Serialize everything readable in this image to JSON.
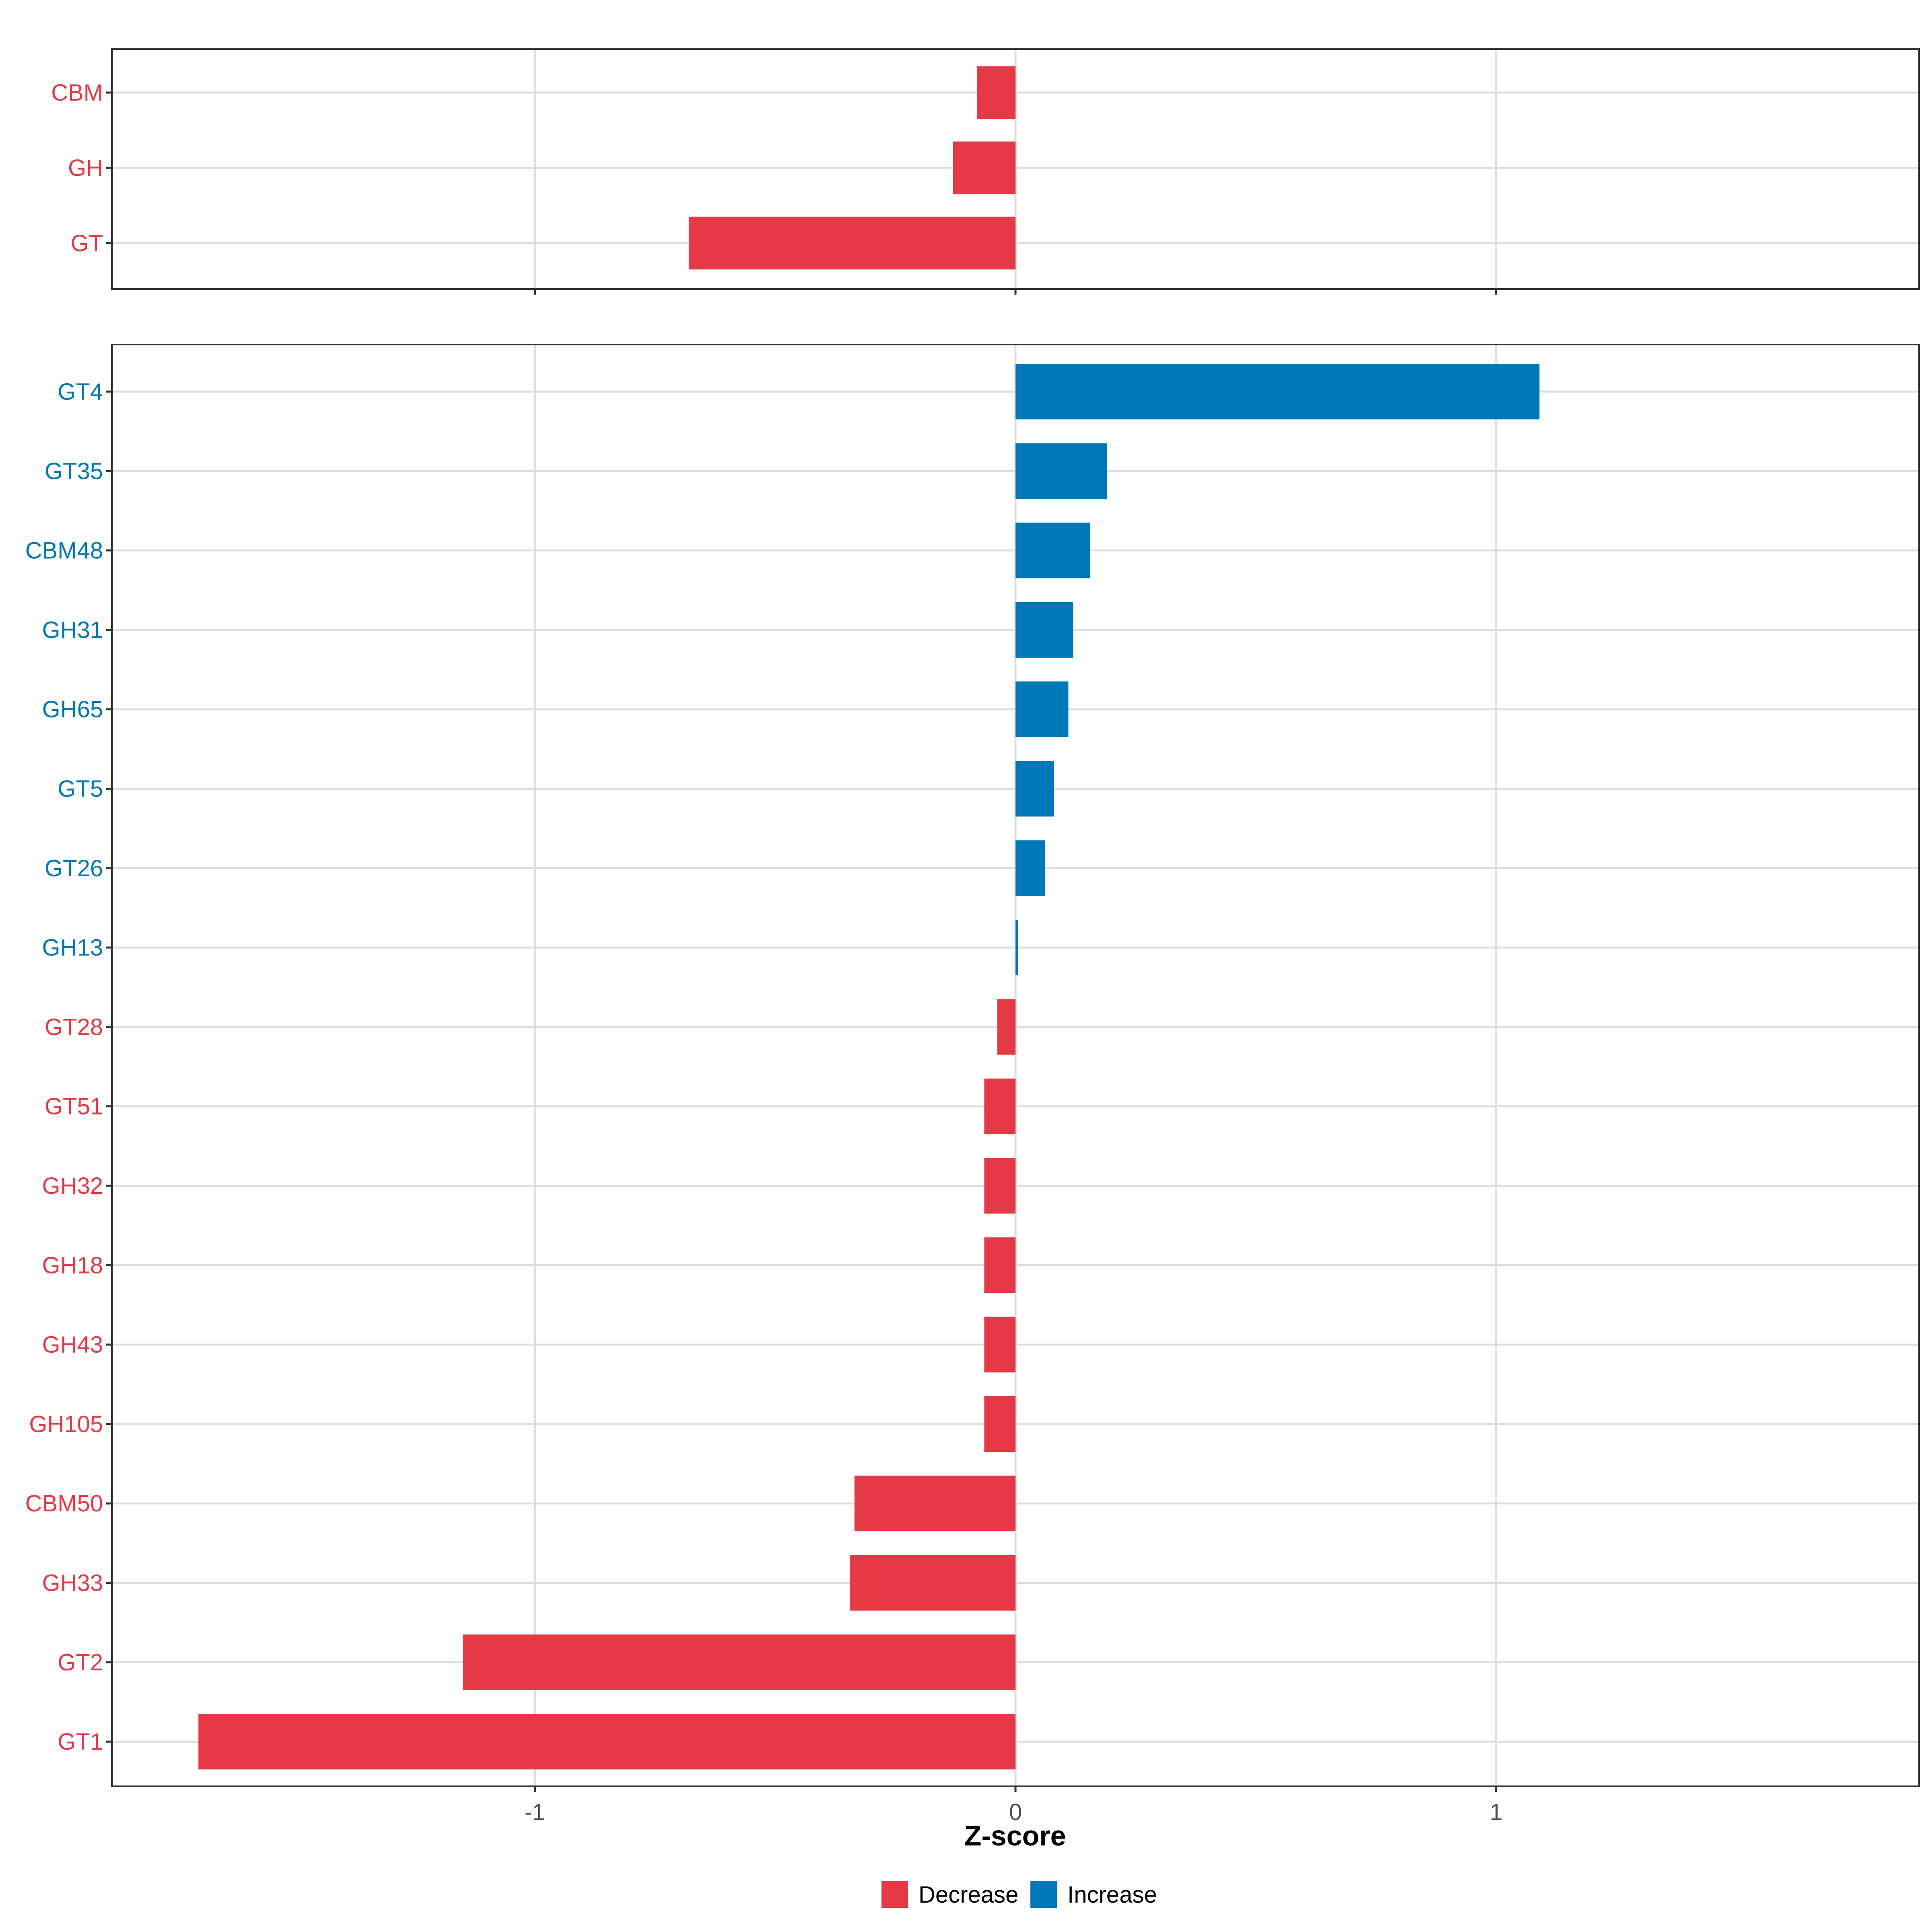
{
  "chart_data": {
    "type": "bar",
    "orientation": "horizontal",
    "xlabel": "Z-score",
    "xlim": [
      -1.88,
      1.88
    ],
    "xticks": [
      -1,
      0,
      1
    ],
    "xtick_labels": [
      "-1",
      "0",
      "1"
    ],
    "grid": true,
    "colors": {
      "Decrease": "#e63946",
      "Increase": "#0077b6"
    },
    "legend": {
      "position": "bottom",
      "entries": [
        {
          "label": "Decrease",
          "color": "#e63946"
        },
        {
          "label": "Increase",
          "color": "#0077b6"
        }
      ]
    },
    "panels": [
      {
        "name": "top",
        "bars": [
          {
            "label": "CBM",
            "value": -0.08,
            "group": "Decrease"
          },
          {
            "label": "GH",
            "value": -0.13,
            "group": "Decrease"
          },
          {
            "label": "GT",
            "value": -0.68,
            "group": "Decrease"
          }
        ]
      },
      {
        "name": "bottom",
        "bars": [
          {
            "label": "GT4",
            "value": 1.09,
            "group": "Increase"
          },
          {
            "label": "GT35",
            "value": 0.19,
            "group": "Increase"
          },
          {
            "label": "CBM48",
            "value": 0.155,
            "group": "Increase"
          },
          {
            "label": "GH31",
            "value": 0.12,
            "group": "Increase"
          },
          {
            "label": "GH65",
            "value": 0.11,
            "group": "Increase"
          },
          {
            "label": "GT5",
            "value": 0.08,
            "group": "Increase"
          },
          {
            "label": "GT26",
            "value": 0.062,
            "group": "Increase"
          },
          {
            "label": "GH13",
            "value": 0.005,
            "group": "Increase"
          },
          {
            "label": "GT28",
            "value": -0.038,
            "group": "Decrease"
          },
          {
            "label": "GT51",
            "value": -0.065,
            "group": "Decrease"
          },
          {
            "label": "GH32",
            "value": -0.065,
            "group": "Decrease"
          },
          {
            "label": "GH18",
            "value": -0.065,
            "group": "Decrease"
          },
          {
            "label": "GH43",
            "value": -0.065,
            "group": "Decrease"
          },
          {
            "label": "GH105",
            "value": -0.065,
            "group": "Decrease"
          },
          {
            "label": "CBM50",
            "value": -0.335,
            "group": "Decrease"
          },
          {
            "label": "GH33",
            "value": -0.345,
            "group": "Decrease"
          },
          {
            "label": "GT2",
            "value": -1.15,
            "group": "Decrease"
          },
          {
            "label": "GT1",
            "value": -1.7,
            "group": "Decrease"
          }
        ]
      }
    ]
  }
}
